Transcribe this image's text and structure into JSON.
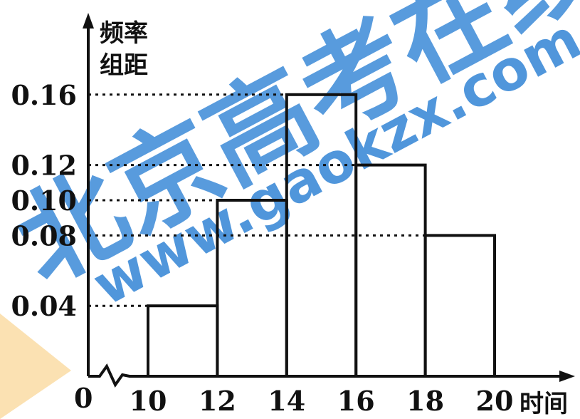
{
  "watermark": {
    "chinese": "北京高考在线",
    "site": "www.gaokzx.com",
    "color": "#2a7fd4",
    "accent": "#f7c873"
  },
  "chart_data": {
    "type": "histogram",
    "ylabel": [
      "频率",
      "组距"
    ],
    "xlabel": "时间",
    "origin_label": "0",
    "bins": [
      {
        "from": 10,
        "to": 12,
        "value": 0.04
      },
      {
        "from": 12,
        "to": 14,
        "value": 0.1
      },
      {
        "from": 14,
        "to": 16,
        "value": 0.16
      },
      {
        "from": 16,
        "to": 18,
        "value": 0.12
      },
      {
        "from": 18,
        "to": 20,
        "value": 0.08
      }
    ],
    "x_ticks": [
      "10",
      "12",
      "14",
      "16",
      "18",
      "20"
    ],
    "y_ticks": [
      "0.04",
      "0.08",
      "0.10",
      "0.12",
      "0.16"
    ],
    "y_tick_values": [
      0.04,
      0.08,
      0.1,
      0.12,
      0.16
    ],
    "xlim": [
      10,
      20
    ],
    "ylim": [
      0,
      0.2
    ],
    "axis_break": true,
    "dashed_guides": true,
    "grid": false
  }
}
